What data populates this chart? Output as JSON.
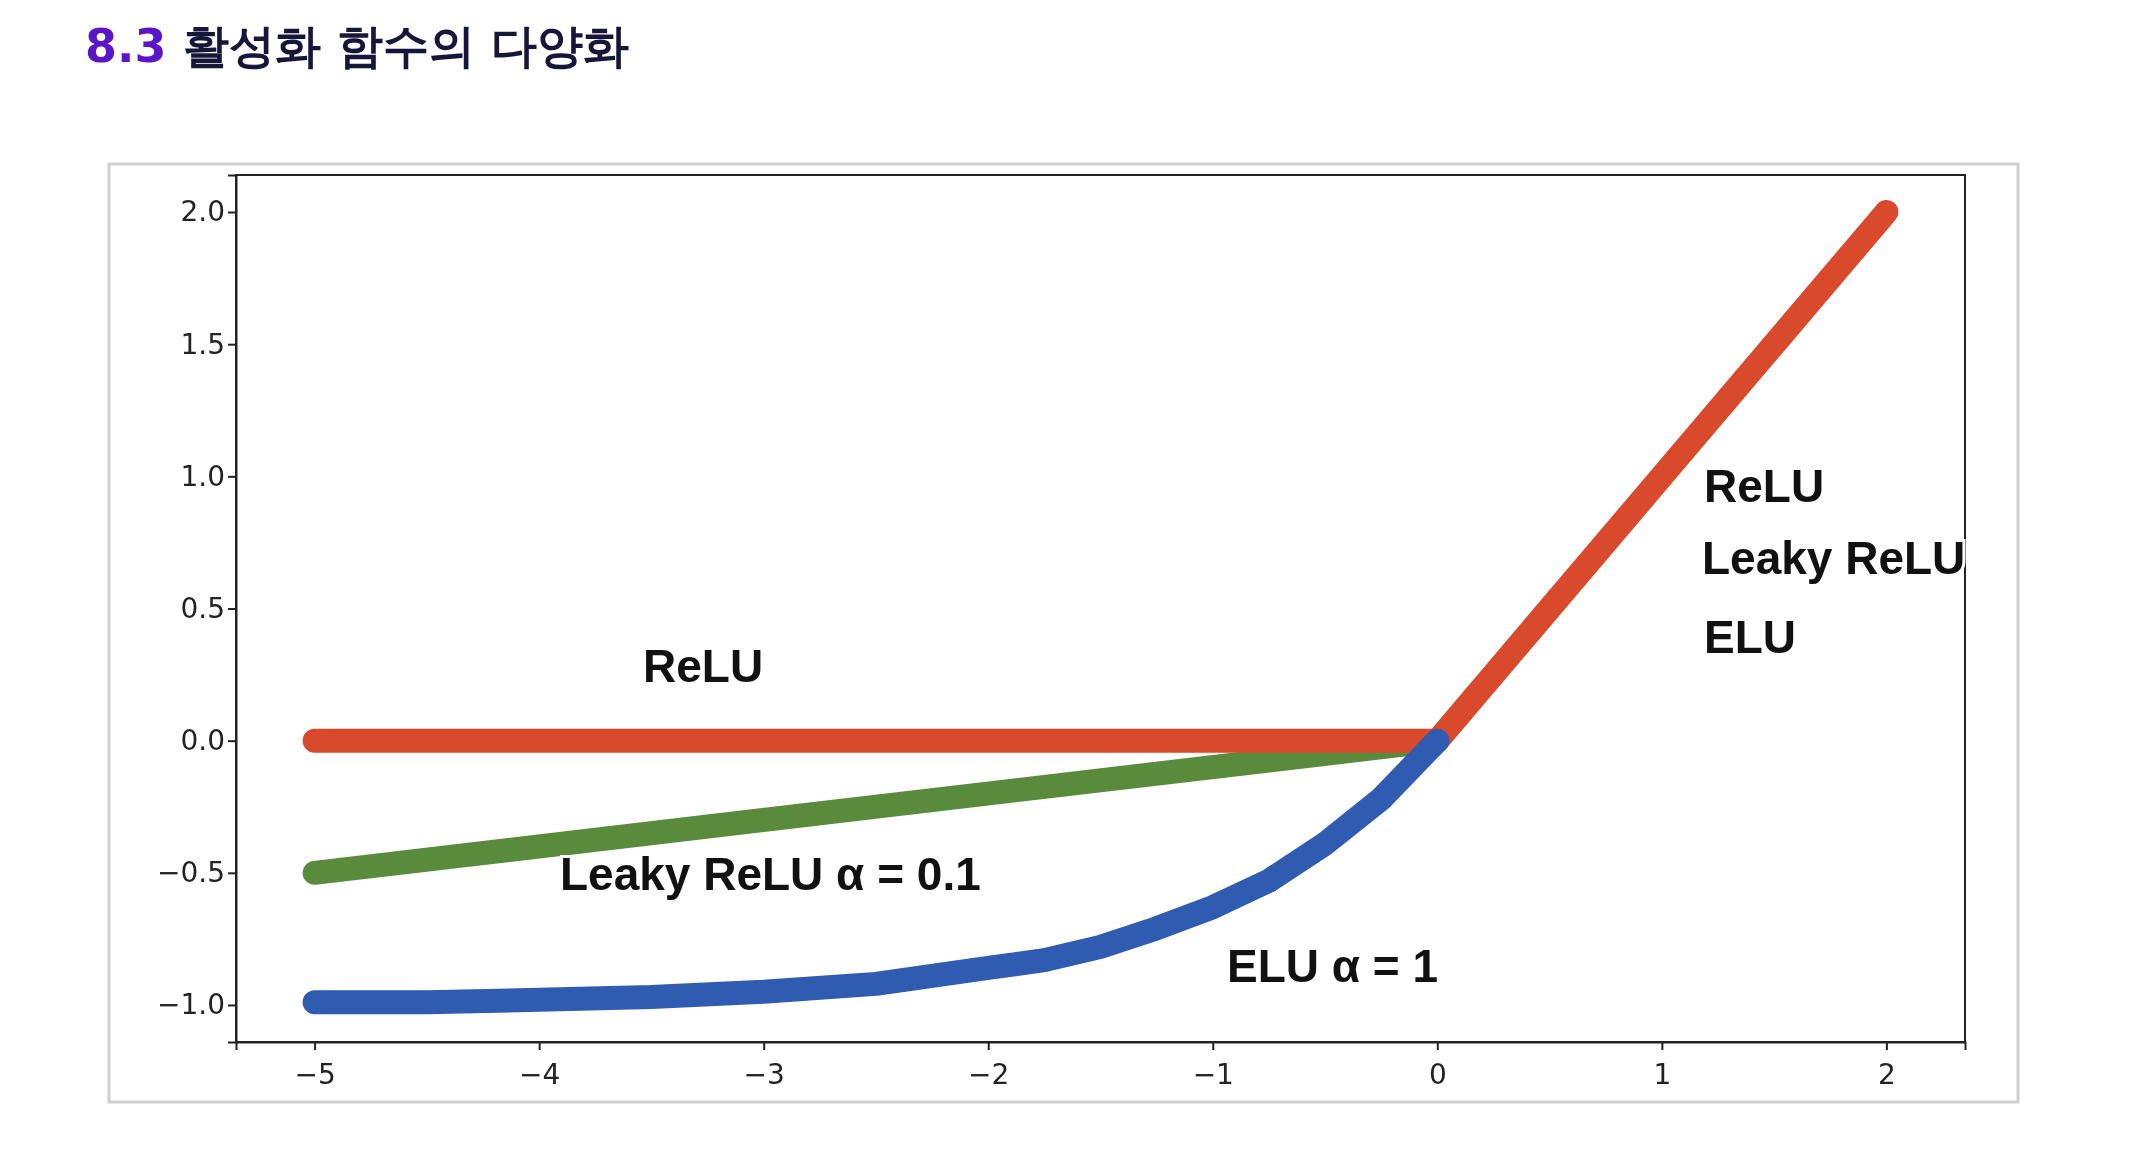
{
  "chart_data": {
    "type": "line",
    "title": "8.3 활성화 함수의 다양화",
    "xlim": [
      -5.35,
      2.35
    ],
    "ylim": [
      -1.14,
      2.14
    ],
    "xticks": [
      {
        "value": -5,
        "label": "−5"
      },
      {
        "value": -4,
        "label": "−4"
      },
      {
        "value": -3,
        "label": "−3"
      },
      {
        "value": -2,
        "label": "−2"
      },
      {
        "value": -1,
        "label": "−1"
      },
      0,
      1,
      2
    ],
    "yticks": [
      {
        "value": -1,
        "label": "−1.0"
      },
      {
        "value": -0.5,
        "label": "−0.5"
      },
      {
        "value": 0,
        "label": "0.0"
      },
      {
        "value": 0.5,
        "label": "0.5"
      },
      {
        "value": 1,
        "label": "1.0"
      },
      {
        "value": 1.5,
        "label": "1.5"
      },
      {
        "value": 2,
        "label": "2.0"
      }
    ],
    "grid": false,
    "line_style": "solid",
    "series": [
      {
        "color": "#5a8a3c",
        "x": [
          -5,
          0
        ],
        "values": [
          -0.5,
          0
        ]
      },
      {
        "color": "#d9492b",
        "x": [
          -5,
          0,
          2
        ],
        "values": [
          0,
          0,
          2
        ]
      },
      {
        "color": "#2f5bb0",
        "x": [
          -5,
          -4.5,
          -4,
          -3.5,
          -3,
          -2.5,
          -2,
          -1.75,
          -1.5,
          -1.25,
          -1,
          -0.75,
          -0.5,
          -0.25,
          0
        ],
        "values": [
          -0.99,
          -0.99,
          -0.98,
          -0.97,
          -0.95,
          -0.92,
          -0.86,
          -0.83,
          -0.78,
          -0.71,
          -0.63,
          -0.53,
          -0.39,
          -0.22,
          0
        ]
      }
    ],
    "annotations": [
      "ReLU",
      "Leaky ReLU  α = 0.1",
      "ELU  α = 1",
      "ReLU",
      "Leaky ReLU",
      "ELU"
    ]
  }
}
